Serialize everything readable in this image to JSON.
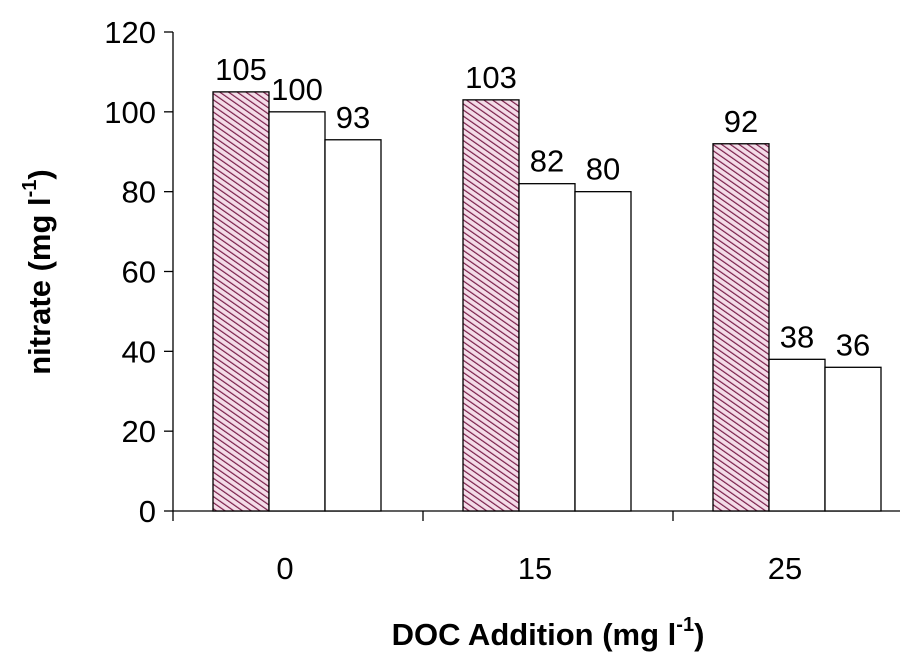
{
  "chart_data": {
    "type": "bar",
    "categories": [
      "0",
      "15",
      "25"
    ],
    "series": [
      {
        "values": [
          105,
          103,
          92
        ],
        "fill": "hatched",
        "color": "#7a1f4a"
      },
      {
        "values": [
          100,
          82,
          38
        ],
        "fill": "white",
        "color": "#ffffff"
      },
      {
        "values": [
          93,
          80,
          36
        ],
        "fill": "white",
        "color": "#ffffff"
      }
    ],
    "data_labels": [
      [
        "105",
        "103",
        "92"
      ],
      [
        "100",
        "82",
        "38"
      ],
      [
        "93",
        "80",
        "36"
      ]
    ],
    "y_ticks": [
      "0",
      "20",
      "40",
      "60",
      "80",
      "100",
      "120"
    ],
    "ylim": [
      0,
      120
    ],
    "xlabel": {
      "text": "DOC Addition  (mg l",
      "sup": "-1",
      "close": ")"
    },
    "ylabel": {
      "text": "nitrate (mg l",
      "sup": "-1",
      "close": ")"
    },
    "grid": false,
    "legend": "none"
  }
}
